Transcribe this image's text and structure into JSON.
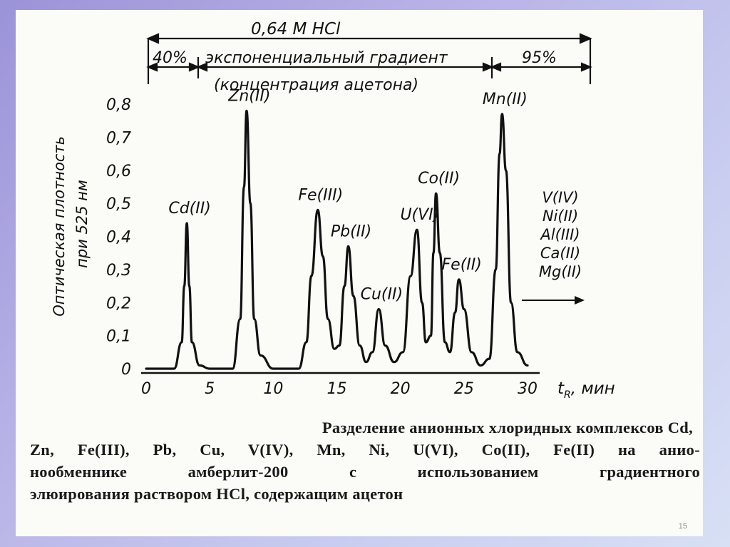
{
  "slide": {
    "page_number": "15",
    "caption_lines": [
      "Разделение анионных хлоридных комплексов Cd,",
      "Zn, Fe(III), Pb, Cu, V(IV), Mn, Ni, U(VI), Co(II), Fe(II) на анио-",
      "нообменнике амберлит-200 с использованием градиентного",
      "элюирования раствором HCl, содержащим ацетон"
    ]
  },
  "header": {
    "hcl": "0,64 М HCl",
    "pct_start": "40%",
    "gradient": "экспоненциальный градиент",
    "gradient_sub": "(концентрация ацетона)",
    "pct_end": "95%"
  },
  "chart_data": {
    "type": "line",
    "xlabel": "t_R, мин",
    "ylabel": "Оптическая плотность при 525 нм",
    "xlim": [
      0,
      30
    ],
    "ylim": [
      0,
      0.8
    ],
    "x_ticks": [
      "0",
      "5",
      "10",
      "15",
      "20",
      "25",
      "30"
    ],
    "y_ticks": [
      "0",
      "0,1",
      "0,2",
      "0,3",
      "0,4",
      "0,5",
      "0,6",
      "0,7",
      "0,8"
    ],
    "peaks": [
      {
        "label": "Cd(II)",
        "t": 3.2,
        "height": 0.44
      },
      {
        "label": "Zn(II)",
        "t": 7.9,
        "height": 0.78
      },
      {
        "label": "Fe(III)",
        "t": 13.5,
        "height": 0.48
      },
      {
        "label": "Pb(II)",
        "t": 15.9,
        "height": 0.37
      },
      {
        "label": "Cu(II)",
        "t": 18.3,
        "height": 0.18
      },
      {
        "label": "U(VI)",
        "t": 21.3,
        "height": 0.42
      },
      {
        "label": "Co(II)",
        "t": 22.8,
        "height": 0.53
      },
      {
        "label": "Fe(II)",
        "t": 24.6,
        "height": 0.27
      },
      {
        "label": "Mn(II)",
        "t": 28.0,
        "height": 0.77
      }
    ],
    "unretained": [
      "V(IV)",
      "Ni(II)",
      "Al(III)",
      "Ca(II)",
      "Mg(II)"
    ],
    "curve": [
      [
        0,
        0
      ],
      [
        2.2,
        0.0
      ],
      [
        2.8,
        0.08
      ],
      [
        3.0,
        0.25
      ],
      [
        3.2,
        0.44
      ],
      [
        3.4,
        0.25
      ],
      [
        3.6,
        0.08
      ],
      [
        4.2,
        0.01
      ],
      [
        5,
        0
      ],
      [
        6.8,
        0.0
      ],
      [
        7.4,
        0.15
      ],
      [
        7.7,
        0.55
      ],
      [
        7.9,
        0.78
      ],
      [
        8.2,
        0.5
      ],
      [
        8.5,
        0.15
      ],
      [
        9.0,
        0.04
      ],
      [
        10.0,
        0.0
      ],
      [
        12.0,
        0.0
      ],
      [
        12.6,
        0.08
      ],
      [
        13.0,
        0.28
      ],
      [
        13.5,
        0.48
      ],
      [
        13.9,
        0.34
      ],
      [
        14.3,
        0.15
      ],
      [
        14.8,
        0.06
      ],
      [
        15.2,
        0.07
      ],
      [
        15.6,
        0.25
      ],
      [
        15.9,
        0.37
      ],
      [
        16.3,
        0.22
      ],
      [
        16.8,
        0.07
      ],
      [
        17.3,
        0.02
      ],
      [
        17.8,
        0.05
      ],
      [
        18.3,
        0.18
      ],
      [
        18.8,
        0.07
      ],
      [
        19.5,
        0.02
      ],
      [
        20.2,
        0.05
      ],
      [
        20.8,
        0.28
      ],
      [
        21.3,
        0.42
      ],
      [
        21.7,
        0.2
      ],
      [
        22.0,
        0.08
      ],
      [
        22.4,
        0.1
      ],
      [
        22.6,
        0.35
      ],
      [
        22.8,
        0.53
      ],
      [
        23.1,
        0.35
      ],
      [
        23.5,
        0.08
      ],
      [
        23.9,
        0.05
      ],
      [
        24.3,
        0.17
      ],
      [
        24.6,
        0.27
      ],
      [
        25.0,
        0.18
      ],
      [
        25.6,
        0.05
      ],
      [
        26.3,
        0.01
      ],
      [
        27.0,
        0.03
      ],
      [
        27.5,
        0.3
      ],
      [
        27.8,
        0.65
      ],
      [
        28.0,
        0.77
      ],
      [
        28.3,
        0.6
      ],
      [
        28.7,
        0.2
      ],
      [
        29.2,
        0.05
      ],
      [
        30.0,
        0.01
      ]
    ]
  }
}
